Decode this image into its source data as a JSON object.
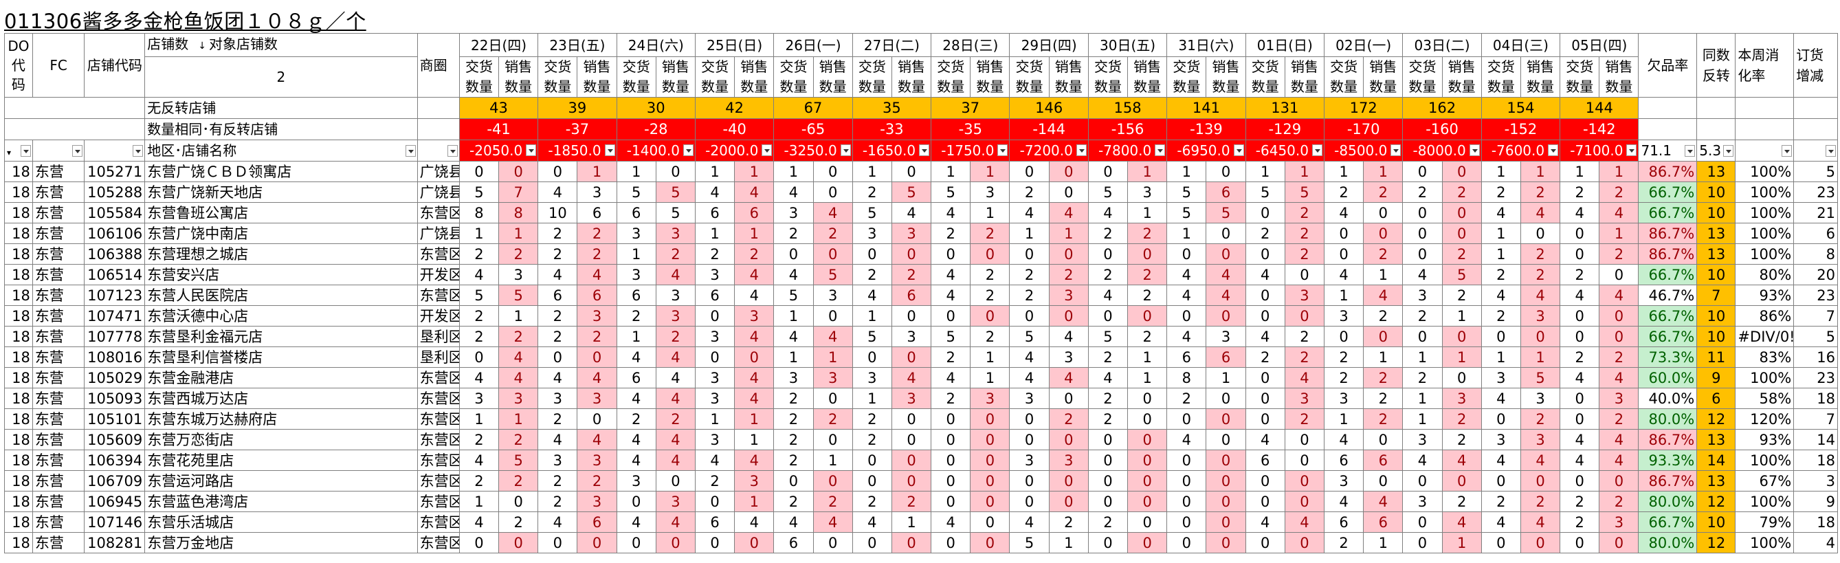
{
  "title": "011306酱多多金枪鱼饭团１０８ｇ／个",
  "header": {
    "do_code": "DO代码",
    "fc": "FC",
    "store_code": "店铺代码",
    "store_count_label": "店铺数",
    "target_store_count_label": "对象店铺数",
    "store_count_value": "2",
    "circle": "商圈",
    "no_return_label": "无反转店铺",
    "same_qty_label": "数量相同･有反转店铺",
    "area_store_label": "地区･店铺名称",
    "shortage_rate": "欠品率",
    "same_count_return": "同数反转",
    "weekly_rate": "本周消化率",
    "order_change": "订货增减",
    "sub_delivery": "交货数量",
    "sub_sales": "销售数量"
  },
  "dates": [
    "22日(四)",
    "23日(五)",
    "24日(六)",
    "25日(日)",
    "26日(一)",
    "27日(二)",
    "28日(三)",
    "29日(四)",
    "30日(五)",
    "31日(六)",
    "01日(日)",
    "02日(一)",
    "03日(二)",
    "04日(三)",
    "05日(四)"
  ],
  "no_return_counts": [
    "43",
    "39",
    "30",
    "42",
    "67",
    "35",
    "37",
    "146",
    "158",
    "141",
    "131",
    "172",
    "162",
    "154",
    "144"
  ],
  "same_qty_counts": [
    "-41",
    "-37",
    "-28",
    "-40",
    "-65",
    "-33",
    "-35",
    "-144",
    "-156",
    "-139",
    "-129",
    "-170",
    "-160",
    "-152",
    "-142"
  ],
  "filter_row": [
    "-2050.0",
    "-1850.0",
    "-1400.0",
    "-2000.0",
    "-3250.0",
    "-1650.0",
    "-1750.0",
    "-7200.0",
    "-7800.0",
    "-6950.0",
    "-6450.0",
    "-8500.0",
    "-8000.0",
    "-7600.0",
    "-7100.0"
  ],
  "filter_shortage": "71.1",
  "filter_same": "5.3",
  "rows": [
    {
      "do": "18",
      "fc": "东营",
      "code": "105271",
      "name": "东营广饶ＣＢＤ领寓店",
      "circle": "广饶县",
      "v": [
        0,
        0,
        0,
        1,
        1,
        0,
        1,
        1,
        1,
        0,
        1,
        0,
        1,
        1,
        0,
        0,
        0,
        1,
        1,
        0,
        1,
        1,
        1,
        1,
        0,
        0,
        1,
        1,
        1,
        1
      ],
      "rate": "86.7%",
      "rc": "pink",
      "same": "13",
      "wk": "100%",
      "ord": "5"
    },
    {
      "do": "18",
      "fc": "东营",
      "code": "105288",
      "name": "东营广饶新天地店",
      "circle": "广饶县",
      "v": [
        5,
        7,
        4,
        3,
        5,
        5,
        4,
        4,
        4,
        0,
        2,
        5,
        5,
        3,
        2,
        0,
        5,
        3,
        5,
        6,
        5,
        5,
        2,
        2,
        2,
        2,
        2,
        2,
        2,
        2
      ],
      "rate": "66.7%",
      "rc": "green",
      "same": "10",
      "wk": "100%",
      "ord": "23"
    },
    {
      "do": "18",
      "fc": "东营",
      "code": "105584",
      "name": "东营鲁班公寓店",
      "circle": "东营区",
      "v": [
        8,
        8,
        10,
        6,
        6,
        5,
        6,
        6,
        3,
        4,
        5,
        4,
        4,
        1,
        4,
        4,
        4,
        1,
        5,
        5,
        0,
        2,
        4,
        0,
        0,
        0,
        4,
        4,
        4,
        4
      ],
      "rate": "66.7%",
      "rc": "green",
      "same": "10",
      "wk": "100%",
      "ord": "21"
    },
    {
      "do": "18",
      "fc": "东营",
      "code": "106106",
      "name": "东营广饶中南店",
      "circle": "广饶县",
      "v": [
        1,
        1,
        2,
        2,
        3,
        3,
        1,
        1,
        2,
        2,
        3,
        3,
        2,
        2,
        1,
        1,
        2,
        2,
        1,
        0,
        2,
        2,
        0,
        0,
        0,
        0,
        1,
        0,
        0,
        1
      ],
      "rate": "86.7%",
      "rc": "pink",
      "same": "13",
      "wk": "100%",
      "ord": "6"
    },
    {
      "do": "18",
      "fc": "东营",
      "code": "106388",
      "name": "东营理想之城店",
      "circle": "东营区",
      "v": [
        2,
        2,
        2,
        2,
        1,
        2,
        2,
        2,
        0,
        0,
        0,
        0,
        0,
        0,
        0,
        0,
        0,
        0,
        0,
        0,
        0,
        2,
        0,
        2,
        0,
        2,
        1,
        2,
        0,
        2
      ],
      "rate": "86.7%",
      "rc": "pink",
      "same": "13",
      "wk": "100%",
      "ord": "8"
    },
    {
      "do": "18",
      "fc": "东营",
      "code": "106514",
      "name": "东营安兴店",
      "circle": "开发区",
      "v": [
        4,
        3,
        4,
        4,
        3,
        4,
        3,
        4,
        4,
        5,
        2,
        2,
        4,
        2,
        2,
        2,
        2,
        2,
        4,
        4,
        4,
        0,
        4,
        1,
        4,
        5,
        2,
        2,
        2,
        0
      ],
      "rate": "66.7%",
      "rc": "green",
      "same": "10",
      "wk": "80%",
      "ord": "20"
    },
    {
      "do": "18",
      "fc": "东营",
      "code": "107123",
      "name": "东营人民医院店",
      "circle": "东营区",
      "v": [
        5,
        5,
        6,
        6,
        6,
        3,
        6,
        4,
        5,
        3,
        4,
        6,
        4,
        2,
        2,
        3,
        4,
        2,
        4,
        4,
        0,
        3,
        1,
        4,
        3,
        2,
        4,
        4,
        4,
        4
      ],
      "rate": "46.7%",
      "rc": "none",
      "same": "7",
      "wk": "93%",
      "ord": "23"
    },
    {
      "do": "18",
      "fc": "东营",
      "code": "107471",
      "name": "东营沃德中心店",
      "circle": "开发区",
      "v": [
        2,
        1,
        2,
        3,
        2,
        3,
        0,
        3,
        1,
        0,
        1,
        0,
        0,
        0,
        0,
        0,
        0,
        0,
        0,
        0,
        0,
        0,
        3,
        2,
        2,
        1,
        2,
        3,
        0,
        0
      ],
      "rate": "66.7%",
      "rc": "green",
      "same": "10",
      "wk": "86%",
      "ord": "7"
    },
    {
      "do": "18",
      "fc": "东营",
      "code": "107778",
      "name": "东营垦利金福元店",
      "circle": "垦利区",
      "v": [
        2,
        2,
        2,
        2,
        1,
        2,
        3,
        4,
        4,
        4,
        5,
        3,
        5,
        2,
        5,
        4,
        5,
        2,
        4,
        3,
        4,
        2,
        0,
        0,
        0,
        0,
        0,
        0,
        0,
        0
      ],
      "rate": "66.7%",
      "rc": "green",
      "same": "10",
      "wk": "#DIV/0!",
      "ord": "5"
    },
    {
      "do": "18",
      "fc": "东营",
      "code": "108016",
      "name": "东营垦利信誉楼店",
      "circle": "垦利区",
      "v": [
        0,
        4,
        0,
        0,
        4,
        4,
        0,
        0,
        1,
        1,
        0,
        0,
        2,
        1,
        4,
        3,
        2,
        1,
        6,
        6,
        2,
        2,
        2,
        1,
        1,
        1,
        1,
        1,
        2,
        2
      ],
      "rate": "73.3%",
      "rc": "green",
      "same": "11",
      "wk": "83%",
      "ord": "16"
    },
    {
      "do": "18",
      "fc": "东营",
      "code": "105029",
      "name": "东营金融港店",
      "circle": "东营区",
      "v": [
        4,
        4,
        4,
        4,
        6,
        4,
        3,
        4,
        3,
        3,
        3,
        4,
        4,
        1,
        4,
        4,
        4,
        1,
        8,
        1,
        0,
        4,
        2,
        2,
        2,
        0,
        3,
        5,
        4,
        4
      ],
      "rate": "60.0%",
      "rc": "green",
      "same": "9",
      "wk": "100%",
      "ord": "23"
    },
    {
      "do": "18",
      "fc": "东营",
      "code": "105093",
      "name": "东营西城万达店",
      "circle": "东营区",
      "v": [
        3,
        3,
        3,
        3,
        4,
        4,
        3,
        4,
        2,
        0,
        1,
        3,
        2,
        3,
        3,
        0,
        2,
        0,
        2,
        0,
        0,
        3,
        3,
        2,
        1,
        3,
        4,
        3,
        0,
        3
      ],
      "rate": "40.0%",
      "rc": "none",
      "same": "6",
      "wk": "58%",
      "ord": "18"
    },
    {
      "do": "18",
      "fc": "东营",
      "code": "105101",
      "name": "东营东城万达赫府店",
      "circle": "东营区",
      "v": [
        1,
        1,
        2,
        0,
        2,
        2,
        1,
        1,
        2,
        2,
        2,
        0,
        0,
        0,
        0,
        2,
        2,
        0,
        0,
        0,
        0,
        2,
        1,
        2,
        1,
        2,
        0,
        2,
        0,
        2
      ],
      "rate": "80.0%",
      "rc": "green",
      "same": "12",
      "wk": "120%",
      "ord": "7"
    },
    {
      "do": "18",
      "fc": "东营",
      "code": "105609",
      "name": "东营万恋街店",
      "circle": "东营区",
      "v": [
        2,
        2,
        4,
        4,
        4,
        4,
        3,
        1,
        2,
        0,
        2,
        0,
        0,
        0,
        0,
        0,
        0,
        0,
        4,
        0,
        4,
        0,
        4,
        0,
        3,
        2,
        3,
        3,
        4,
        4
      ],
      "rate": "86.7%",
      "rc": "pink",
      "same": "13",
      "wk": "93%",
      "ord": "14"
    },
    {
      "do": "18",
      "fc": "东营",
      "code": "106394",
      "name": "东营花苑里店",
      "circle": "东营区",
      "v": [
        4,
        5,
        3,
        3,
        4,
        4,
        4,
        4,
        2,
        1,
        0,
        0,
        0,
        0,
        3,
        3,
        0,
        0,
        0,
        0,
        6,
        0,
        6,
        6,
        4,
        4,
        4,
        4,
        4,
        4
      ],
      "rate": "93.3%",
      "rc": "green",
      "same": "14",
      "wk": "100%",
      "ord": "18"
    },
    {
      "do": "18",
      "fc": "东营",
      "code": "106709",
      "name": "东营运河路店",
      "circle": "东营区",
      "v": [
        2,
        2,
        2,
        2,
        3,
        0,
        2,
        3,
        0,
        0,
        0,
        0,
        0,
        0,
        0,
        0,
        0,
        0,
        0,
        0,
        0,
        0,
        3,
        0,
        0,
        0,
        0,
        0,
        0,
        0
      ],
      "rate": "86.7%",
      "rc": "pink",
      "same": "13",
      "wk": "67%",
      "ord": "3"
    },
    {
      "do": "18",
      "fc": "东营",
      "code": "106945",
      "name": "东营蓝色港湾店",
      "circle": "东营区",
      "v": [
        1,
        0,
        2,
        3,
        0,
        3,
        0,
        1,
        2,
        2,
        2,
        2,
        0,
        0,
        0,
        0,
        0,
        0,
        0,
        0,
        0,
        0,
        4,
        4,
        3,
        2,
        2,
        2,
        2,
        2
      ],
      "rate": "80.0%",
      "rc": "green",
      "same": "12",
      "wk": "100%",
      "ord": "9"
    },
    {
      "do": "18",
      "fc": "东营",
      "code": "107146",
      "name": "东营乐活城店",
      "circle": "东营区",
      "v": [
        4,
        2,
        4,
        6,
        4,
        4,
        6,
        4,
        4,
        4,
        4,
        1,
        4,
        0,
        4,
        2,
        2,
        0,
        0,
        0,
        4,
        4,
        6,
        6,
        0,
        4,
        4,
        4,
        2,
        3
      ],
      "rate": "66.7%",
      "rc": "green",
      "same": "10",
      "wk": "79%",
      "ord": "18"
    },
    {
      "do": "18",
      "fc": "东营",
      "code": "108281",
      "name": "东营万金地店",
      "circle": "东营区",
      "v": [
        0,
        0,
        0,
        0,
        0,
        0,
        0,
        0,
        6,
        0,
        0,
        0,
        0,
        0,
        5,
        1,
        0,
        0,
        0,
        0,
        0,
        0,
        2,
        1,
        0,
        1,
        0,
        0,
        0,
        0
      ],
      "rate": "80.0%",
      "rc": "green",
      "same": "12",
      "wk": "100%",
      "ord": "4"
    }
  ]
}
